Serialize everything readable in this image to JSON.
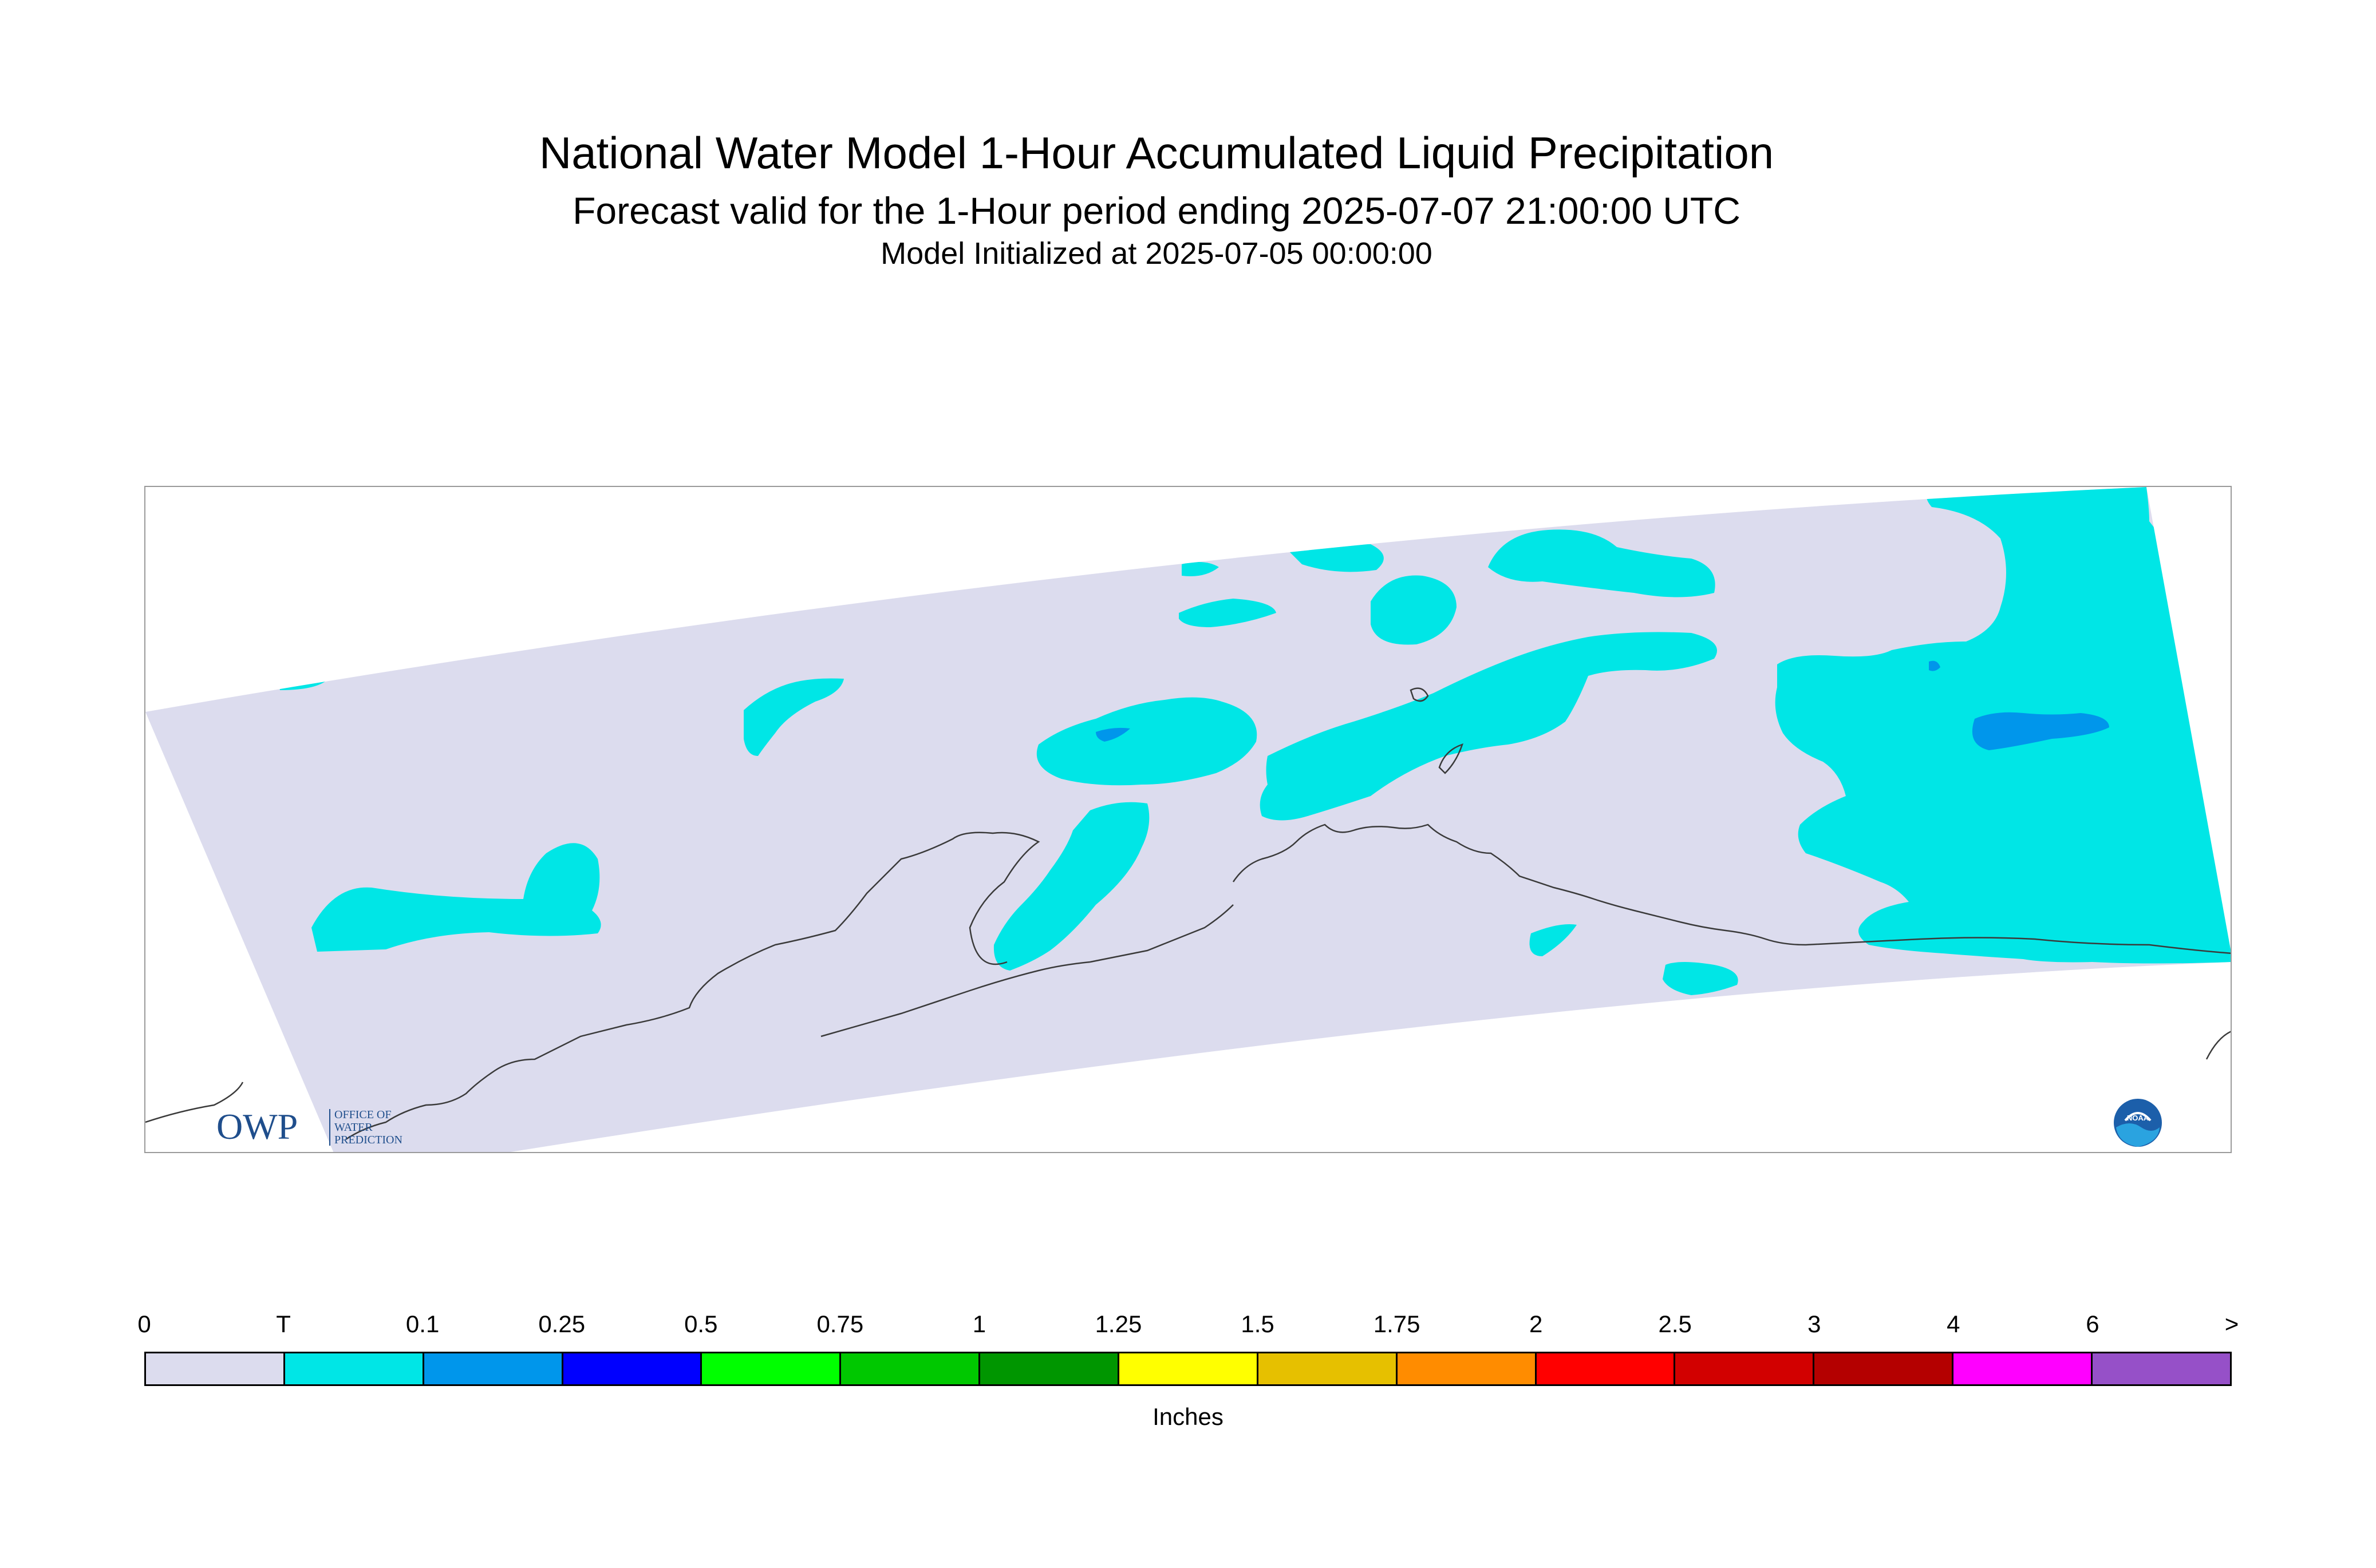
{
  "header": {
    "title": "National Water Model 1-Hour Accumulated Liquid Precipitation",
    "subtitle": "Forecast valid for the 1-Hour period ending 2025-07-07 21:00:00 UTC",
    "init": "Model Initialized at 2025-07-05 00:00:00"
  },
  "logos": {
    "owp_main": "OWP",
    "owp_line1": "OFFICE OF",
    "owp_line2": "WATER",
    "owp_line3": "PREDICTION",
    "noaa_text": "NOAA"
  },
  "colors": {
    "no_precip": "#dcdcee",
    "trace": "#00e6e6",
    "light": "#0096eb",
    "coastline": "#3a3a3a"
  },
  "legend": {
    "units": "Inches",
    "ticks": [
      "0",
      "T",
      "0.1",
      "0.25",
      "0.5",
      "0.75",
      "1",
      "1.25",
      "1.5",
      "1.75",
      "2",
      "2.5",
      "3",
      "4",
      "6",
      ">"
    ],
    "bins": [
      {
        "color": "#dcdcee"
      },
      {
        "color": "#00e6e6"
      },
      {
        "color": "#0096eb"
      },
      {
        "color": "#0000ff"
      },
      {
        "color": "#00ff00"
      },
      {
        "color": "#00c800"
      },
      {
        "color": "#009600"
      },
      {
        "color": "#ffff00"
      },
      {
        "color": "#e6c000"
      },
      {
        "color": "#ff8c00"
      },
      {
        "color": "#ff0000"
      },
      {
        "color": "#d20000"
      },
      {
        "color": "#b40000"
      },
      {
        "color": "#ff00ff"
      },
      {
        "color": "#9650c8"
      }
    ]
  }
}
